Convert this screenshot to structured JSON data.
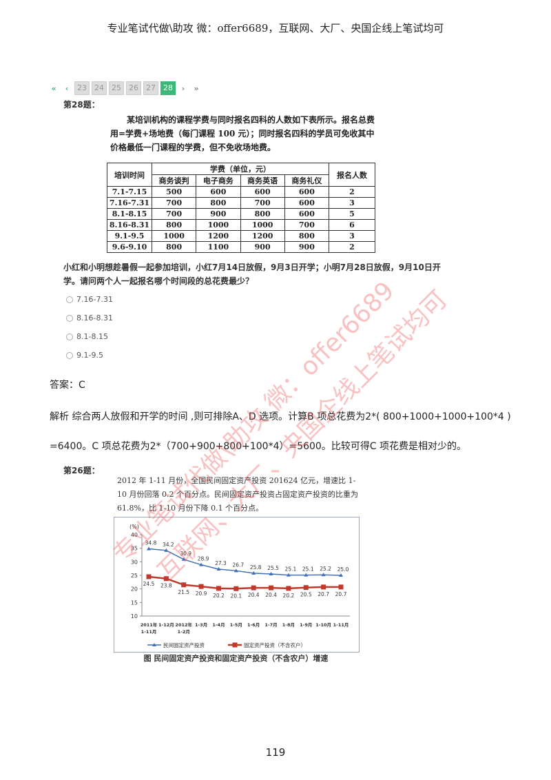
{
  "header": "专业笔试代做\\助攻 微：offer6689，互联网、大厂、央国企线上笔试均可",
  "pager": {
    "first": "«",
    "prev": "‹",
    "pages": [
      "23",
      "24",
      "25",
      "26",
      "27",
      "28"
    ],
    "active": "28",
    "next": "›",
    "last": "»",
    "accent": "#3cb97a"
  },
  "q28": {
    "title": "第28题：",
    "intro": "某培训机构的课程学费与同时报名四科的人数如下表所示。报名总费用=学费+场地费（每门课程 100 元）；同时报名四科的学员可免收其中价格最低一门课程的学费，但不免收场地费。",
    "table": {
      "h_time": "培训时间",
      "h_fee": "学费（单位，元）",
      "h_count": "报名人数",
      "subjects": [
        "商务谈判",
        "电子商务",
        "商务英语",
        "商务礼仪"
      ],
      "rows": [
        [
          "7.1-7.15",
          "500",
          "600",
          "600",
          "600",
          "2"
        ],
        [
          "7.16-7.31",
          "700",
          "800",
          "700",
          "600",
          "3"
        ],
        [
          "8.1-8.15",
          "700",
          "900",
          "800",
          "600",
          "5"
        ],
        [
          "8.16-8.31",
          "800",
          "1000",
          "1000",
          "700",
          "6"
        ],
        [
          "9.1-9.5",
          "1000",
          "1200",
          "1200",
          "800",
          "3"
        ],
        [
          "9.6-9.10",
          "800",
          "1100",
          "900",
          "900",
          "2"
        ]
      ]
    },
    "question": "小红和小明想趁暑假一起参加培训，小红7月14日放假，9月3日开学；小明7月28日放假，9月10日开学。请问两个人一起报名哪个时间段的总花费最少？",
    "options": [
      "7.16-7.31",
      "8.16-8.31",
      "8.1-8.15",
      "9.1-9.5"
    ]
  },
  "answer": "答案：C",
  "analysis": [
    "解析  综合两人放假和开学的时间 ,则可排除A、D  选项。计算B  项总花费为2*( 800+1000+1000+100*4 )",
    "=6400。C  项总花费为2*（700+900+800+100*4）=5600。比较可得C  项花费是相对少的。"
  ],
  "q26": {
    "title": "第26题：",
    "text": "2012 年 1-11 月份，全国民间固定资产投资 201624 亿元，增速比 1-10 月份回落 0.2 个百分点。民间固定资产投资占固定资产投资的比重为 61.8%，比 1-10 月份下降 0.1 个百分点。",
    "caption": "图  民间固定资产投资和固定资产投资（不含农户）增速"
  },
  "chart_data": {
    "type": "line",
    "ylabel": "(%)",
    "ylim": [
      10,
      40
    ],
    "yticks": [
      "40",
      "35",
      "30",
      "25",
      "20",
      "15",
      "10"
    ],
    "categories": [
      [
        "2011年",
        "1-11月"
      ],
      [
        "1-12月",
        ""
      ],
      [
        "2012年",
        "1-2月"
      ],
      [
        "1-3月",
        ""
      ],
      [
        "1-4月",
        ""
      ],
      [
        "1-5月",
        ""
      ],
      [
        "1-6月",
        ""
      ],
      [
        "1-7月",
        ""
      ],
      [
        "1-8月",
        ""
      ],
      [
        "1-9月",
        ""
      ],
      [
        "1-10月",
        ""
      ],
      [
        "1-11月",
        ""
      ]
    ],
    "series": [
      {
        "name": "民间固定资产投资",
        "color": "#3f6fb5",
        "marker": "triangle",
        "values": [
          34.8,
          34.2,
          30.9,
          28.9,
          27.3,
          26.7,
          25.8,
          25.5,
          25.1,
          25.1,
          25.2,
          25.0
        ],
        "labels": [
          "34.8",
          "34.2",
          "30.9",
          "28.9",
          "27.3",
          "26.7",
          "25.8",
          "25.5",
          "25.1",
          "25.1",
          "25.2",
          "25.0"
        ]
      },
      {
        "name": "固定资产投资（不含农户）",
        "color": "#c0392b",
        "marker": "square",
        "values": [
          24.5,
          23.8,
          21.5,
          20.9,
          20.2,
          20.1,
          20.4,
          20.4,
          20.2,
          20.5,
          20.7,
          20.7
        ],
        "labels": [
          "24.5",
          "23.8",
          "21.5",
          "20.9",
          "20.2",
          "20.1",
          "20.4",
          "20.4",
          "20.2",
          "20.5",
          "20.7",
          "20.7"
        ]
      }
    ],
    "legend": "bottom",
    "grid": false
  },
  "watermark": [
    "专业笔试代做\\助攻  微：offer6689",
    "互联网、大厂、央国企线上笔试均可"
  ],
  "page_number": "119"
}
